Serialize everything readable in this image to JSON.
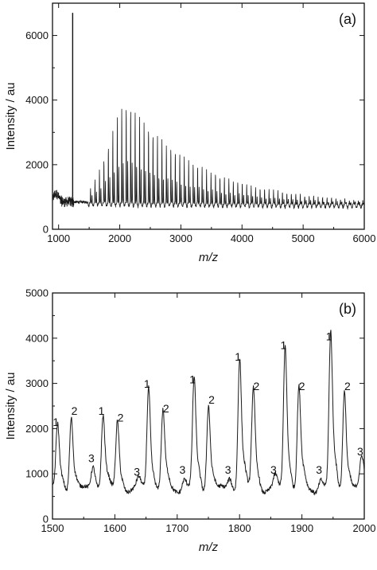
{
  "chart_data": [
    {
      "type": "line",
      "panel_label": "(a)",
      "xlabel": "m/z",
      "ylabel": "Intensity / au",
      "xlim": [
        900,
        6000
      ],
      "ylim": [
        0,
        7000
      ],
      "x_ticks": [
        1000,
        2000,
        3000,
        4000,
        5000,
        6000
      ],
      "y_ticks": [
        0,
        2000,
        4000,
        6000
      ],
      "grid": false,
      "spectrum": {
        "baseline": 850,
        "baseline_at_6000": 780,
        "first_peak_mz": 1230,
        "spike_height": 6700,
        "envelope_center_mz": 2150,
        "envelope_max": 3950,
        "secondary_envelope_max": 2700,
        "peak_spacing_mz": 73,
        "tail_height_at_6000": 900
      }
    },
    {
      "type": "line",
      "panel_label": "(b)",
      "xlabel": "m/z",
      "ylabel": "Intensity / au",
      "xlim": [
        1500,
        2000
      ],
      "ylim": [
        0,
        5000
      ],
      "x_ticks": [
        1500,
        1600,
        1700,
        1800,
        1900,
        2000
      ],
      "y_ticks": [
        0,
        1000,
        2000,
        3000,
        4000,
        5000
      ],
      "grid": false,
      "baseline": 650,
      "peaks": [
        {
          "label": "1",
          "x": 1508,
          "y": 1950
        },
        {
          "label": "2",
          "x": 1530,
          "y": 2200
        },
        {
          "label": "3",
          "x": 1565,
          "y": 1150
        },
        {
          "label": "1",
          "x": 1581,
          "y": 2200
        },
        {
          "label": "2",
          "x": 1604,
          "y": 2050
        },
        {
          "label": "3",
          "x": 1638,
          "y": 850
        },
        {
          "label": "1",
          "x": 1654,
          "y": 2800
        },
        {
          "label": "2",
          "x": 1677,
          "y": 2250
        },
        {
          "label": "3",
          "x": 1711,
          "y": 900
        },
        {
          "label": "1",
          "x": 1727,
          "y": 2900
        },
        {
          "label": "2",
          "x": 1750,
          "y": 2450
        },
        {
          "label": "3",
          "x": 1784,
          "y": 900
        },
        {
          "label": "1",
          "x": 1800,
          "y": 3400
        },
        {
          "label": "2",
          "x": 1822,
          "y": 2750
        },
        {
          "label": "3",
          "x": 1857,
          "y": 900
        },
        {
          "label": "1",
          "x": 1873,
          "y": 3650
        },
        {
          "label": "2",
          "x": 1895,
          "y": 2750
        },
        {
          "label": "3",
          "x": 1930,
          "y": 900
        },
        {
          "label": "1",
          "x": 1946,
          "y": 3850
        },
        {
          "label": "2",
          "x": 1968,
          "y": 2750
        },
        {
          "label": "3",
          "x": 1996,
          "y": 1300
        }
      ]
    }
  ]
}
